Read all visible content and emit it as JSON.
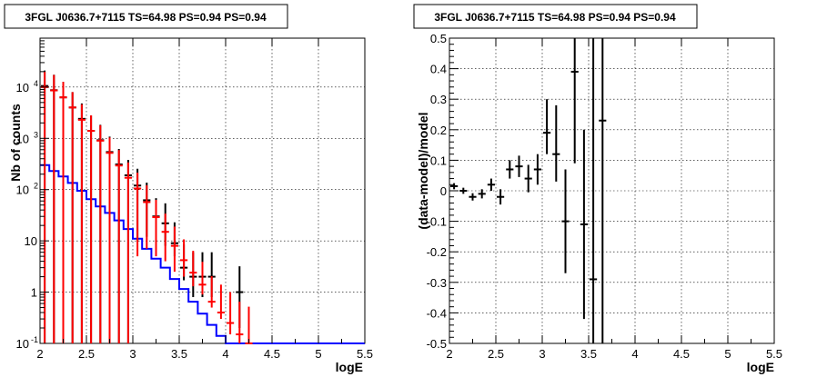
{
  "chart_data": [
    {
      "type": "line",
      "title": "3FGL J0636.7+7115 TS=64.98 PS=0.94 PS=0.94",
      "xlabel": "logE",
      "ylabel": "Nb of counts",
      "xlim": [
        2,
        5.5
      ],
      "ylim": [
        0.1,
        90000
      ],
      "yscale": "log",
      "grid": true,
      "xticks": [
        "2",
        "2.5",
        "3",
        "3.5",
        "4",
        "4.5",
        "5",
        "5.5"
      ],
      "yticks": [
        {
          "v": 0.1,
          "label": "10",
          "sup": "-1"
        },
        {
          "v": 1,
          "label": "1",
          "sup": ""
        },
        {
          "v": 10,
          "label": "10",
          "sup": ""
        },
        {
          "v": 100,
          "label": "10",
          "sup": "2"
        },
        {
          "v": 1000,
          "label": "10",
          "sup": "3"
        },
        {
          "v": 10000,
          "label": "10",
          "sup": "4"
        }
      ],
      "series": [
        {
          "color": "#0000ff",
          "style": "step",
          "x": [
            2.0,
            2.1,
            2.2,
            2.3,
            2.4,
            2.5,
            2.6,
            2.7,
            2.8,
            2.9,
            3.0,
            3.1,
            3.2,
            3.3,
            3.4,
            3.5,
            3.6,
            3.7,
            3.8,
            3.9,
            4.0,
            4.1,
            4.2,
            4.3,
            4.4,
            4.5,
            4.6,
            4.7,
            4.8,
            4.9,
            5.0,
            5.1,
            5.2,
            5.3,
            5.4
          ],
          "y": [
            300,
            230,
            180,
            135,
            95,
            65,
            47,
            35,
            25,
            17,
            11,
            7,
            4.5,
            3,
            1.8,
            1.15,
            0.65,
            0.38,
            0.23,
            0.14,
            0.1,
            0.1,
            0.1,
            0.1,
            0.1,
            0.1,
            0.1,
            0.1,
            0.1,
            0.1,
            0.1,
            0.1,
            0.1,
            0.1,
            0.1
          ]
        },
        {
          "color": "#000000",
          "style": "errorbar",
          "x": [
            2.05,
            2.15,
            2.25,
            2.35,
            2.45,
            2.55,
            2.65,
            2.75,
            2.85,
            2.95,
            3.05,
            3.15,
            3.25,
            3.35,
            3.45,
            3.55,
            3.65,
            3.75,
            3.85,
            4.15
          ],
          "y": [
            10500,
            8700,
            6300,
            4000,
            2400,
            1400,
            920,
            540,
            310,
            190,
            120,
            62,
            30,
            22,
            9,
            3,
            2,
            2,
            2,
            1
          ],
          "err_lo": [
            10500,
            8700,
            6300,
            4000,
            2400,
            1400,
            920,
            540,
            310,
            190,
            110,
            50,
            24,
            14,
            4,
            1.3,
            1.2,
            1.2,
            1.2,
            0.8
          ],
          "err_hi": [
            10500,
            8700,
            6300,
            4000,
            2400,
            1400,
            920,
            540,
            310,
            190,
            135,
            75,
            38,
            32,
            14,
            5.5,
            4,
            4,
            4,
            2.2
          ]
        },
        {
          "color": "#ff0000",
          "style": "errorbar",
          "x": [
            2.05,
            2.15,
            2.25,
            2.35,
            2.45,
            2.55,
            2.65,
            2.75,
            2.85,
            2.95,
            3.05,
            3.15,
            3.25,
            3.35,
            3.45,
            3.55,
            3.65,
            3.75,
            3.85,
            3.95,
            4.05,
            4.15,
            4.25
          ],
          "y": [
            10000,
            8600,
            6300,
            4000,
            2300,
            1400,
            900,
            520,
            295,
            170,
            105,
            57,
            29,
            15,
            8,
            4.2,
            2.4,
            1.4,
            0.65,
            0.4,
            0.25,
            0.15,
            0.1
          ],
          "err_lo": [
            10000,
            8600,
            6300,
            4000,
            2300,
            1400,
            900,
            520,
            295,
            170,
            100,
            50,
            24,
            11,
            5.5,
            2.2,
            1.1,
            0.5,
            0.15,
            0.1,
            0.1,
            0.1,
            0.1
          ],
          "err_hi": [
            10000,
            8600,
            6300,
            4000,
            2300,
            1400,
            900,
            520,
            295,
            170,
            110,
            64,
            34,
            19,
            11,
            6.5,
            4,
            2.5,
            1.4,
            1.0,
            0.75,
            0.5,
            0.42
          ]
        }
      ]
    },
    {
      "type": "scatter",
      "title": "3FGL J0636.7+7115 TS=64.98 PS=0.94 PS=0.94",
      "xlabel": "logE",
      "ylabel": "(data-model)/model",
      "xlim": [
        2,
        5.5
      ],
      "ylim": [
        -0.5,
        0.5
      ],
      "grid": true,
      "xticks": [
        "2",
        "2.5",
        "3",
        "3.5",
        "4",
        "4.5",
        "5",
        "5.5"
      ],
      "yticks": [
        "-0.5",
        "-0.4",
        "-0.3",
        "-0.2",
        "-0.1",
        "0",
        "0.1",
        "0.2",
        "0.3",
        "0.4",
        "0.5"
      ],
      "series": [
        {
          "color": "#000000",
          "style": "errorbar",
          "x": [
            2.05,
            2.15,
            2.25,
            2.35,
            2.45,
            2.55,
            2.65,
            2.75,
            2.85,
            2.95,
            3.05,
            3.15,
            3.25,
            3.35,
            3.45,
            3.55,
            3.65
          ],
          "y": [
            0.015,
            0.0,
            -0.02,
            -0.01,
            0.02,
            -0.02,
            0.07,
            0.08,
            0.04,
            0.07,
            0.19,
            0.12,
            -0.1,
            0.39,
            -0.11,
            -0.29,
            0.23
          ],
          "err_lo": [
            0.01,
            0.01,
            0.012,
            0.015,
            0.02,
            0.025,
            0.03,
            0.035,
            0.045,
            0.05,
            0.07,
            0.09,
            0.17,
            0.3,
            0.31,
            0.21,
            0.73
          ],
          "err_hi": [
            0.01,
            0.01,
            0.012,
            0.015,
            0.02,
            0.025,
            0.03,
            0.035,
            0.045,
            0.05,
            0.11,
            0.16,
            0.17,
            0.11,
            0.31,
            0.79,
            0.27
          ]
        }
      ]
    }
  ]
}
